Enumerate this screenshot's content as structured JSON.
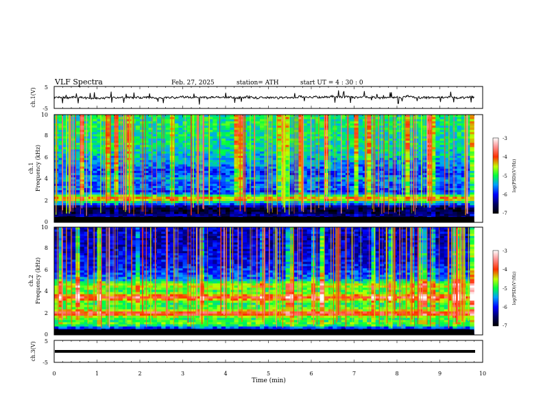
{
  "header": {
    "title": "VLF  Spectra",
    "date": "Feb. 27, 2025",
    "station": "station= ATH",
    "start": "start  UT  =    4  : 30 : 0"
  },
  "chart_data": [
    {
      "type": "line",
      "name": "waveform-ch1",
      "ylabel": "ch.1(V)",
      "yticks": [
        "5",
        "-5"
      ],
      "ylim": [
        -5,
        5
      ],
      "xlim": [
        0,
        10
      ],
      "trace_data_extent_min": 9.8,
      "level": 0
    },
    {
      "type": "heatmap",
      "name": "spectrogram-ch1",
      "ylabel_line1": "ch.1",
      "ylabel_line2": "Frequency  (kHz)",
      "yticks": [
        "0",
        "2",
        "4",
        "6",
        "8",
        "10"
      ],
      "ylim": [
        0,
        10
      ],
      "xlim": [
        0,
        10
      ],
      "colorbar": {
        "label": "log(PSD)(V²/Hz)",
        "ticks": [
          "-3",
          "-4",
          "-5",
          "-6",
          "-7"
        ],
        "range": [
          -7,
          -3
        ]
      },
      "bands_khz": [
        {
          "f": 0.3,
          "level": -7
        },
        {
          "f": 0.6,
          "level": -6.3
        },
        {
          "f": 1.0,
          "level": -6.8
        },
        {
          "f": 1.4,
          "level": -6.6
        },
        {
          "f": 2.0,
          "level": -5.0
        },
        {
          "f": 2.2,
          "level": -3.9
        },
        {
          "f": 2.8,
          "level": -6.0
        },
        {
          "f": 3.2,
          "level": -5.6
        },
        {
          "f": 3.6,
          "level": -5.8
        },
        {
          "f": 4.0,
          "level": -5.4
        },
        {
          "f": 4.6,
          "level": -5.9
        },
        {
          "f": 5.5,
          "level": -5.5
        },
        {
          "f": 7.0,
          "level": -5.2
        },
        {
          "f": 9.0,
          "level": -5.1
        }
      ]
    },
    {
      "type": "heatmap",
      "name": "spectrogram-ch2",
      "ylabel_line1": "ch.2",
      "ylabel_line2": "Frequency  (kHz)",
      "yticks": [
        "0",
        "2",
        "4",
        "6",
        "8",
        "10"
      ],
      "ylim": [
        0,
        10
      ],
      "xlim": [
        0,
        10
      ],
      "colorbar": {
        "label": "log(PSD)(V²/Hz)",
        "ticks": [
          "-3",
          "-4",
          "-5",
          "-6",
          "-7"
        ],
        "range": [
          -7,
          -3
        ]
      },
      "bands_khz": [
        {
          "f": 0.3,
          "level": -7
        },
        {
          "f": 1.0,
          "level": -4.8
        },
        {
          "f": 1.6,
          "level": -5.0
        },
        {
          "f": 2.0,
          "level": -3.5
        },
        {
          "f": 2.4,
          "level": -4.8
        },
        {
          "f": 3.0,
          "level": -5.0
        },
        {
          "f": 3.5,
          "level": -3.8
        },
        {
          "f": 4.0,
          "level": -5.0
        },
        {
          "f": 4.6,
          "level": -4.5
        },
        {
          "f": 5.2,
          "level": -5.6
        },
        {
          "f": 6.5,
          "level": -6.0
        },
        {
          "f": 8.5,
          "level": -6.2
        }
      ]
    },
    {
      "type": "line",
      "name": "waveform-ch3",
      "ylabel": "ch.3(V)",
      "yticks": [
        "5",
        "-5"
      ],
      "ylim": [
        -5,
        5
      ],
      "xlim": [
        0,
        10
      ],
      "level": 0
    }
  ],
  "xaxis": {
    "label": "Time  (min)",
    "ticks": [
      "0",
      "1",
      "2",
      "3",
      "4",
      "5",
      "6",
      "7",
      "8",
      "9",
      "10"
    ]
  }
}
